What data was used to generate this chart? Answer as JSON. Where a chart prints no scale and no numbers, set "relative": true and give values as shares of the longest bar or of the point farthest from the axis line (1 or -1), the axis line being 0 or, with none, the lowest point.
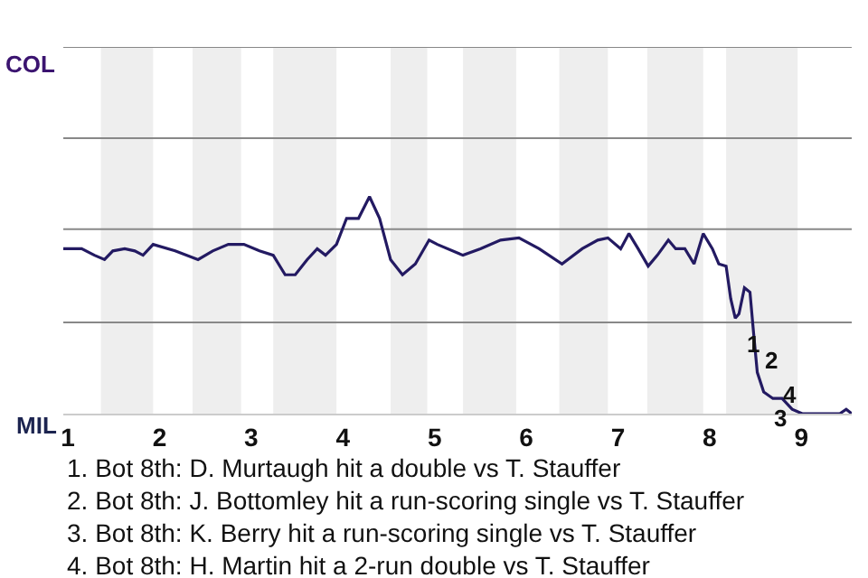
{
  "chart_data": {
    "type": "line",
    "relative": true,
    "x": [
      0.95,
      1.15,
      1.29,
      1.4,
      1.49,
      1.62,
      1.73,
      1.82,
      1.93,
      2.17,
      2.42,
      2.58,
      2.75,
      2.92,
      3.09,
      3.24,
      3.37,
      3.48,
      3.61,
      3.72,
      3.81,
      3.93,
      4.04,
      4.17,
      4.29,
      4.4,
      4.52,
      4.65,
      4.79,
      4.94,
      5.03,
      5.31,
      5.5,
      5.72,
      5.92,
      6.14,
      6.39,
      6.61,
      6.78,
      6.89,
      7.03,
      7.12,
      7.22,
      7.33,
      7.43,
      7.55,
      7.63,
      7.73,
      7.83,
      7.93,
      8.03,
      8.1,
      8.18,
      8.23,
      8.28,
      8.32,
      8.38,
      8.44,
      8.48,
      8.52,
      8.59,
      8.69,
      8.79,
      8.9,
      9.01,
      9.15,
      9.3,
      9.42,
      9.49,
      9.55
    ],
    "series": [
      {
        "color": "#231a62",
        "values": [
          0.76,
          0.76,
          0.73,
          0.71,
          0.75,
          0.76,
          0.75,
          0.73,
          0.78,
          0.75,
          0.71,
          0.75,
          0.78,
          0.78,
          0.75,
          0.73,
          0.64,
          0.64,
          0.71,
          0.76,
          0.73,
          0.78,
          0.9,
          0.9,
          1,
          0.9,
          0.71,
          0.64,
          0.69,
          0.8,
          0.78,
          0.73,
          0.76,
          0.8,
          0.81,
          0.76,
          0.69,
          0.76,
          0.8,
          0.81,
          0.76,
          0.83,
          0.76,
          0.68,
          0.73,
          0.8,
          0.76,
          0.76,
          0.69,
          0.83,
          0.76,
          0.69,
          0.68,
          0.53,
          0.44,
          0.46,
          0.58,
          0.56,
          0.37,
          0.19,
          0.1,
          0.07,
          0.07,
          0.02,
          0,
          0,
          0,
          0,
          0.02,
          0
        ]
      }
    ],
    "xlim": [
      0.95,
      9.55
    ],
    "xticks": [
      1,
      2,
      3,
      4,
      5,
      6,
      7,
      8,
      9
    ],
    "marker": "none",
    "line_style": "solid",
    "ref_lines": [
      {
        "axis": "y",
        "value": 0.42,
        "color": "#888888"
      },
      {
        "axis": "y",
        "value": 0.85,
        "color": "#888888"
      },
      {
        "axis": "y",
        "value": 1.27,
        "color": "#888888"
      },
      {
        "axis": "y",
        "value": 1.69,
        "color": "#888888"
      }
    ],
    "bands": [
      {
        "axis": "x",
        "from": 1.36,
        "to": 1.93,
        "color": "#eeeeee"
      },
      {
        "axis": "x",
        "from": 2.36,
        "to": 2.89,
        "color": "#eeeeee"
      },
      {
        "axis": "x",
        "from": 3.24,
        "to": 3.93,
        "color": "#eeeeee"
      },
      {
        "axis": "x",
        "from": 4.52,
        "to": 4.92,
        "color": "#eeeeee"
      },
      {
        "axis": "x",
        "from": 5.31,
        "to": 5.89,
        "color": "#eeeeee"
      },
      {
        "axis": "x",
        "from": 6.36,
        "to": 6.89,
        "color": "#eeeeee"
      },
      {
        "axis": "x",
        "from": 7.32,
        "to": 7.93,
        "color": "#eeeeee"
      },
      {
        "axis": "x",
        "from": 8.18,
        "to": 8.96,
        "color": "#eeeeee"
      }
    ],
    "annotations": [
      "COL",
      "MIL",
      {
        "text": "1",
        "x": 8.28,
        "y": 0.44
      },
      {
        "text": "2",
        "x": 8.48,
        "y": 0.37
      },
      {
        "text": "3",
        "x": 8.59,
        "y": 0.1
      },
      {
        "text": "4",
        "x": 9.01,
        "y": 0
      },
      "1. Bot 8th: D. Murtaugh hit a double vs T. Stauffer",
      "2. Bot 8th: J. Bottomley hit a run-scoring single vs T. Stauffer",
      "3. Bot 8th: K. Berry hit a run-scoring single vs T. Stauffer",
      "4. Bot 8th: H. Martin hit a 2-run double vs T. Stauffer"
    ]
  }
}
